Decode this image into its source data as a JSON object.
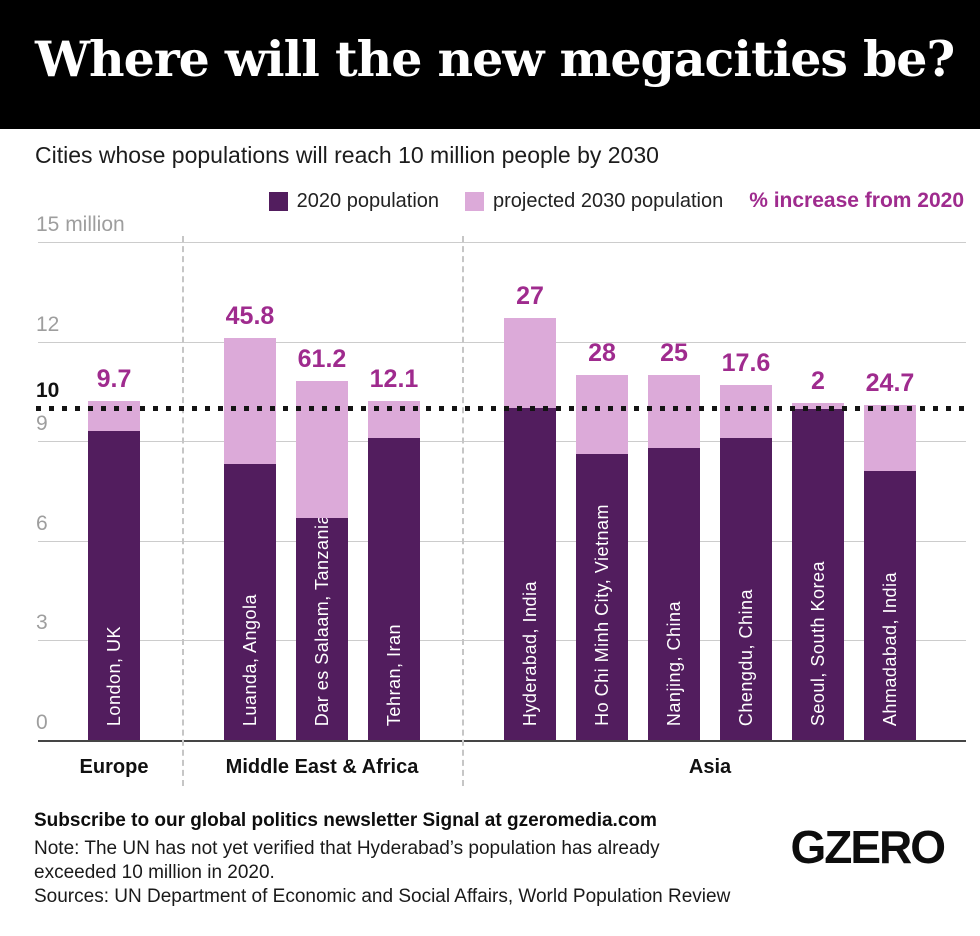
{
  "header": {
    "title": "Where will the new megacities be?"
  },
  "subtitle": "Cities whose populations will reach 10 million people by 2030",
  "legend": {
    "series_2020": "2020 population",
    "series_2030": "projected 2030 population",
    "pct": "% increase from 2020"
  },
  "footer": {
    "subscribe": "Subscribe to our global politics newsletter Signal at gzeromedia.com",
    "note_lines": [
      "Note: The UN has not yet verified that Hyderabad’s population has already",
      "exceeded 10 million in 2020."
    ],
    "sources": "Sources: UN Department of Economic and Social Affairs, World Population Review",
    "logo": "GZERO"
  },
  "colors": {
    "header_bg": "#000000",
    "bar_2020": "#521d5e",
    "bar_2030": "#dcaad9",
    "accent_magenta": "#9f2b8e",
    "axis_gray": "#9e9e9e",
    "gridline": "#cccccc",
    "separator": "#c6c6c6"
  },
  "chart_data": {
    "type": "bar",
    "subtype": "grouped-overlay-stack",
    "title": "Where will the new megacities be?",
    "subtitle": "Cities whose populations will reach 10 million people by 2030",
    "unit_label": "million",
    "ylim": [
      0,
      15
    ],
    "grid": "horizontal",
    "legend_position": "top-right",
    "yticks": [
      {
        "value": 0,
        "label": "0"
      },
      {
        "value": 3,
        "label": "3"
      },
      {
        "value": 6,
        "label": "6"
      },
      {
        "value": 9,
        "label": "9"
      },
      {
        "value": 10,
        "label": "10",
        "emphasis": true
      },
      {
        "value": 12,
        "label": "12"
      },
      {
        "value": 15,
        "label": "15 million"
      }
    ],
    "reference_line": {
      "value": 10,
      "style": "dotted"
    },
    "series": [
      {
        "name": "2020 population",
        "color": "#521d5e"
      },
      {
        "name": "projected 2030 population",
        "color": "#dcaad9"
      }
    ],
    "groups": [
      {
        "label": "Europe",
        "cities": [
          {
            "name": "London, UK",
            "pop_2020": 9.3,
            "pop_2030": 10.2,
            "pct_increase": "9.7"
          }
        ]
      },
      {
        "label": "Middle East & Africa",
        "cities": [
          {
            "name": "Luanda, Angola",
            "pop_2020": 8.3,
            "pop_2030": 12.1,
            "pct_increase": "45.8"
          },
          {
            "name": "Dar es Salaam, Tanzania",
            "pop_2020": 6.7,
            "pop_2030": 10.8,
            "pct_increase": "61.2"
          },
          {
            "name": "Tehran, Iran",
            "pop_2020": 9.1,
            "pop_2030": 10.2,
            "pct_increase": "12.1"
          }
        ]
      },
      {
        "label": "Asia",
        "cities": [
          {
            "name": "Hyderabad, India",
            "pop_2020": 10.0,
            "pop_2030": 12.7,
            "pct_increase": "27"
          },
          {
            "name": "Ho Chi Minh City, Vietnam",
            "pop_2020": 8.6,
            "pop_2030": 11.0,
            "pct_increase": "28"
          },
          {
            "name": "Nanjing, China",
            "pop_2020": 8.8,
            "pop_2030": 11.0,
            "pct_increase": "25"
          },
          {
            "name": "Chengdu, China",
            "pop_2020": 9.1,
            "pop_2030": 10.7,
            "pct_increase": "17.6"
          },
          {
            "name": "Seoul, South Korea",
            "pop_2020": 9.96,
            "pop_2030": 10.16,
            "pct_increase": "2"
          },
          {
            "name": "Ahmadabad, India",
            "pop_2020": 8.1,
            "pop_2030": 10.1,
            "pct_increase": "24.7"
          }
        ]
      }
    ]
  }
}
